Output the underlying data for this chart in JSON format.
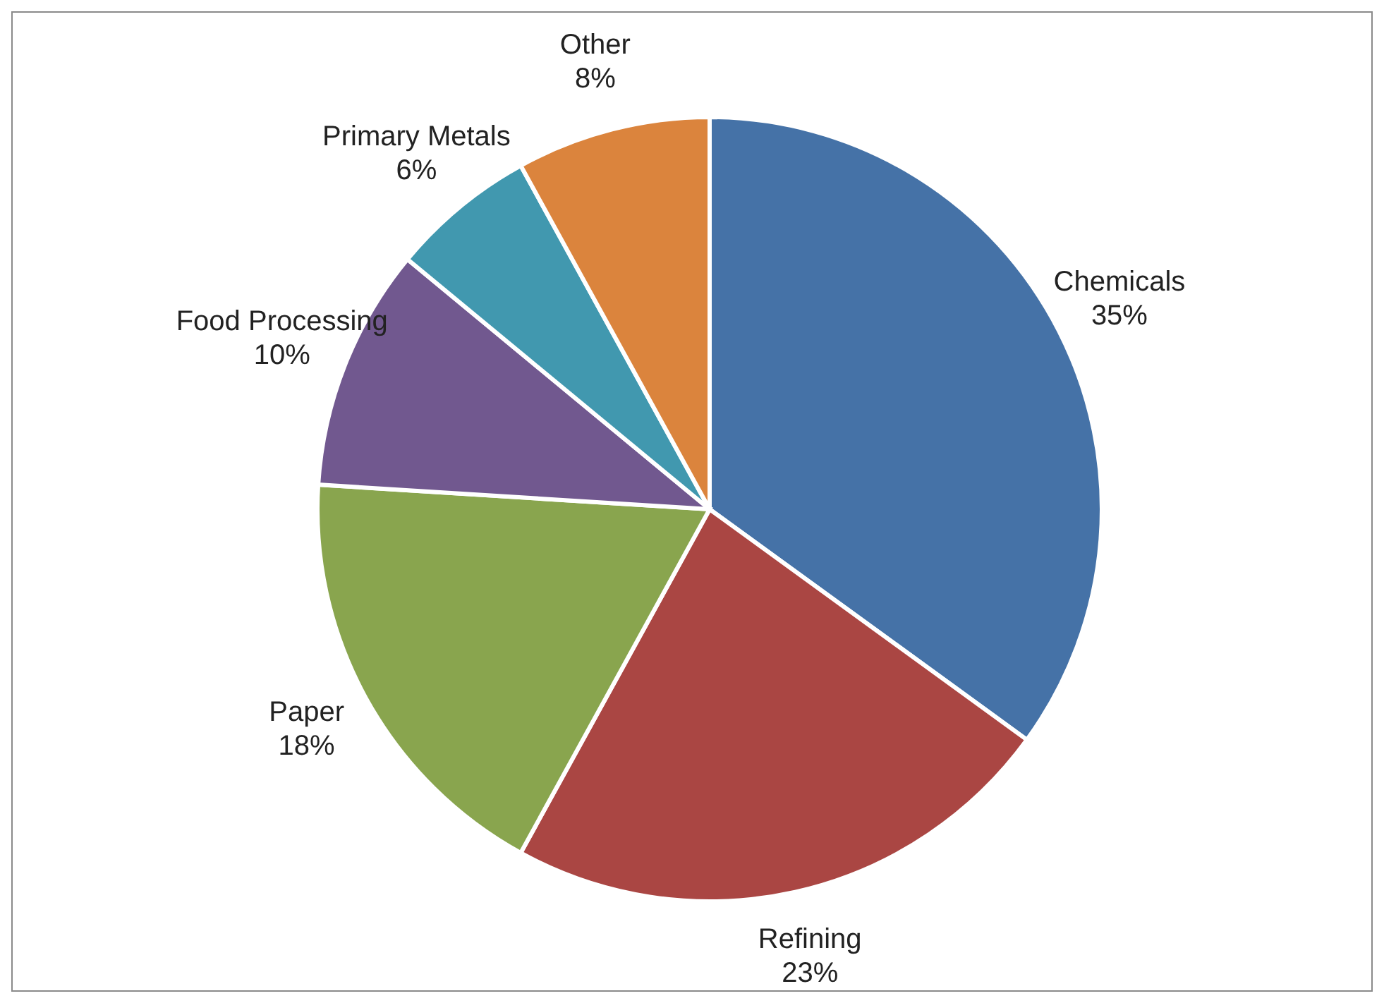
{
  "chart_data": {
    "type": "pie",
    "categories": [
      "Chemicals",
      "Refining",
      "Paper",
      "Food Processing",
      "Primary Metals",
      "Other"
    ],
    "values": [
      35,
      23,
      18,
      10,
      6,
      8
    ],
    "value_labels": [
      "35%",
      "23%",
      "18%",
      "10%",
      "6%",
      "8%"
    ],
    "colors": [
      "#4572a7",
      "#aa4643",
      "#89a54e",
      "#71588f",
      "#4198af",
      "#db843d"
    ],
    "legend": false
  }
}
